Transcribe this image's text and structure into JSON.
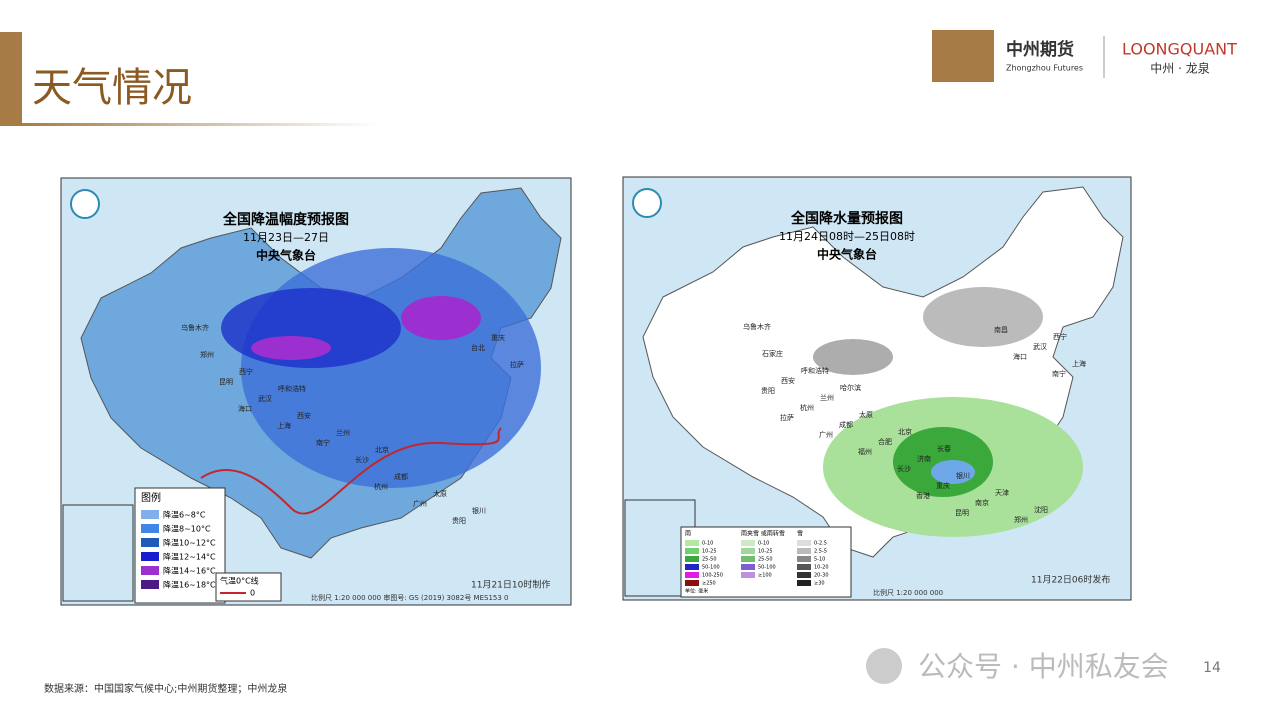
{
  "header": {
    "title": "天气情况",
    "logo": {
      "cn": "中州期货",
      "en": "Zhongzhou Futures",
      "brand": "LOONGQUANT",
      "brand_sub": "中州 · 龙泉"
    }
  },
  "maps": [
    {
      "title": "全国降温幅度预报图",
      "period": "11月23日—27日",
      "issuer": "中央气象台",
      "legend_title": "图例",
      "legend": [
        "降温6~8°C",
        "降温8~10°C",
        "降温10~12°C",
        "降温12~14°C",
        "降温14~16°C",
        "降温16~18°C"
      ],
      "line_legend": {
        "label": "气温0°C线",
        "value": "0"
      },
      "footer": "比例尺 1:20 000 000   审图号: GS (2019) 3082号 MES153 0",
      "made": "11月21日10时制作",
      "cities": [
        "乌鲁木齐",
        "呼和浩特",
        "北京",
        "银川",
        "西宁",
        "兰州",
        "太原",
        "郑州",
        "西安",
        "成都",
        "重庆",
        "武汉",
        "长沙",
        "贵阳",
        "昆明",
        "南宁",
        "广州",
        "拉萨",
        "上海",
        "杭州",
        "台北",
        "海口"
      ]
    },
    {
      "title": "全国降水量预报图",
      "period": "11月24日08时—25日08时",
      "issuer": "中央气象台",
      "legend_groups": [
        {
          "title": "雨",
          "items": [
            "0-10",
            "10-25",
            "25-50",
            "50-100",
            "100-250",
            "≥250"
          ]
        },
        {
          "title": "雨夹雪 或雨转雪",
          "items": [
            "0-10",
            "10-25",
            "25-50",
            "50-100",
            "≥100"
          ]
        },
        {
          "title": "雪",
          "items": [
            "0-2.5",
            "2.5-5",
            "5-10",
            "10-20",
            "20-30",
            "≥30"
          ]
        }
      ],
      "unit": "单位: 毫米",
      "footer": "比例尺 1:20 000 000",
      "made": "11月22日06时发布",
      "cities": [
        "乌鲁木齐",
        "哈尔滨",
        "长春",
        "沈阳",
        "呼和浩特",
        "北京",
        "天津",
        "石家庄",
        "太原",
        "银川",
        "西宁",
        "兰州",
        "济南",
        "郑州",
        "西安",
        "合肥",
        "南京",
        "上海",
        "成都",
        "重庆",
        "武汉",
        "杭州",
        "长沙",
        "南昌",
        "贵阳",
        "福州",
        "昆明",
        "南宁",
        "广州",
        "香港",
        "海口",
        "拉萨"
      ]
    }
  ],
  "footer": {
    "source": "数据来源：中国国家气候中心;中州期货整理；中州龙泉",
    "watermark": "公众号 · 中州私友会",
    "page": "14"
  }
}
